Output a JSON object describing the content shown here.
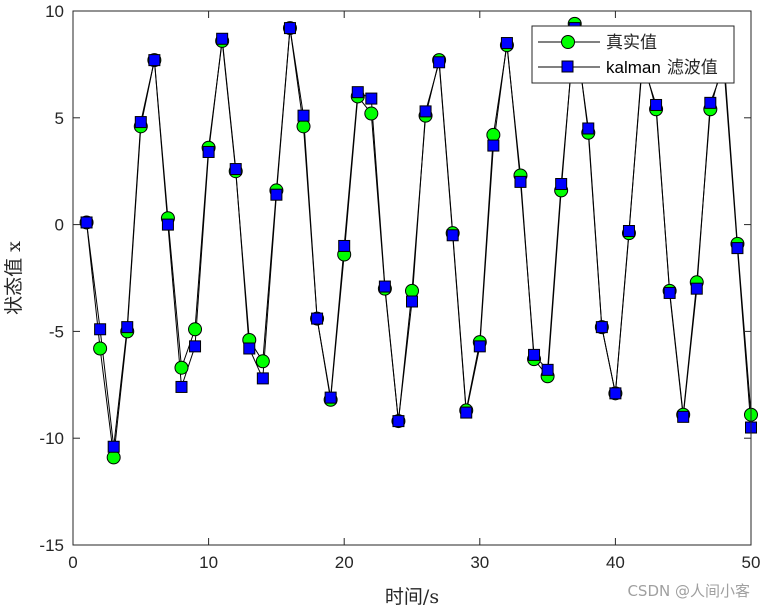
{
  "chart_data": {
    "type": "line",
    "title": "",
    "xlabel": "时间/s",
    "ylabel": "状态值 x",
    "xlim": [
      0,
      50
    ],
    "ylim": [
      -15,
      10
    ],
    "xticks": [
      0,
      10,
      20,
      30,
      40,
      50
    ],
    "yticks": [
      -15,
      -10,
      -5,
      0,
      5,
      10
    ],
    "grid": false,
    "legend_position": "upper right",
    "x": [
      1,
      2,
      3,
      4,
      5,
      6,
      7,
      8,
      9,
      10,
      11,
      12,
      13,
      14,
      15,
      16,
      17,
      18,
      19,
      20,
      21,
      22,
      23,
      24,
      25,
      26,
      27,
      28,
      29,
      30,
      31,
      32,
      33,
      34,
      35,
      36,
      37,
      38,
      39,
      40,
      41,
      42,
      43,
      44,
      45,
      46,
      47,
      48,
      49,
      50
    ],
    "series": [
      {
        "name": "真实值",
        "marker": "circle",
        "color": "#00ff00",
        "line_color": "#000000",
        "values": [
          0.1,
          -5.8,
          -10.9,
          -5.0,
          4.6,
          7.7,
          0.3,
          -6.7,
          -4.9,
          3.6,
          8.6,
          2.5,
          -5.4,
          -6.4,
          1.6,
          9.2,
          4.6,
          -4.4,
          -8.2,
          -1.4,
          6.0,
          5.2,
          -3.0,
          -9.2,
          -3.1,
          5.1,
          7.7,
          -0.4,
          -8.7,
          -5.5,
          4.2,
          8.4,
          2.3,
          -6.3,
          -7.1,
          1.6,
          9.4,
          4.3,
          -4.8,
          -7.9,
          -0.4,
          7.8,
          5.4,
          -3.1,
          -8.9,
          -2.7,
          5.4,
          7.8,
          -0.9,
          -8.9
        ]
      },
      {
        "name": "kalman 滤波值",
        "marker": "square",
        "color": "#0000ff",
        "line_color": "#000000",
        "values": [
          0.1,
          -4.9,
          -10.4,
          -4.8,
          4.8,
          7.7,
          0.0,
          -7.6,
          -5.7,
          3.4,
          8.7,
          2.6,
          -5.8,
          -7.2,
          1.4,
          9.2,
          5.1,
          -4.4,
          -8.1,
          -1.0,
          6.2,
          5.9,
          -2.9,
          -9.2,
          -3.6,
          5.3,
          7.6,
          -0.5,
          -8.8,
          -5.7,
          3.7,
          8.5,
          2.0,
          -6.1,
          -6.8,
          1.9,
          9.2,
          4.5,
          -4.8,
          -7.9,
          -0.3,
          7.6,
          5.6,
          -3.2,
          -9.0,
          -3.0,
          5.7,
          7.4,
          -1.1,
          -9.5
        ]
      }
    ]
  },
  "legend": {
    "items": [
      {
        "label": "真实值"
      },
      {
        "label_latin": "kalman",
        "label_cjk": "滤波值"
      }
    ]
  },
  "watermark": "CSDN @人间小客"
}
